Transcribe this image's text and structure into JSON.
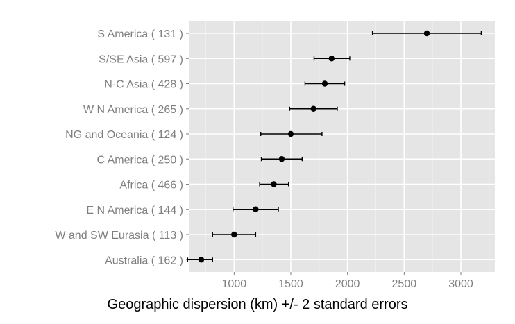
{
  "chart_data": {
    "type": "scatter",
    "title": "",
    "xlabel": "Geographic dispersion (km) +/- 2 standard errors",
    "ylabel": "",
    "xlim": [
      600,
      3300
    ],
    "x_ticks": [
      1000,
      1500,
      2000,
      2500,
      3000
    ],
    "x_tick_labels": [
      "1000",
      "1500",
      "2000",
      "2500",
      "3000"
    ],
    "grid": true,
    "legend": "none",
    "colors": {
      "panel": "#e5e5e5",
      "grid_major": "#ffffff",
      "grid_minor": "#f0f0f0",
      "point": "#000000",
      "text": "#7f7f7f",
      "title": "#000000"
    },
    "categories": [
      {
        "label": "S America  ( 131 )",
        "mean": 2700,
        "lower": 2220,
        "upper": 3180
      },
      {
        "label": "S/SE Asia  ( 597 )",
        "mean": 1860,
        "lower": 1705,
        "upper": 2020
      },
      {
        "label": "N-C Asia  ( 428 )",
        "mean": 1800,
        "lower": 1625,
        "upper": 1975
      },
      {
        "label": "W N America  ( 265 )",
        "mean": 1700,
        "lower": 1490,
        "upper": 1910
      },
      {
        "label": "NG and Oceania  ( 124 )",
        "mean": 1500,
        "lower": 1235,
        "upper": 1775
      },
      {
        "label": "C America  ( 250 )",
        "mean": 1420,
        "lower": 1240,
        "upper": 1600
      },
      {
        "label": "Africa  ( 466 )",
        "mean": 1350,
        "lower": 1225,
        "upper": 1480
      },
      {
        "label": "E N America  ( 144 )",
        "mean": 1190,
        "lower": 990,
        "upper": 1390
      },
      {
        "label": "W and SW Eurasia  ( 113 )",
        "mean": 1000,
        "lower": 810,
        "upper": 1190
      },
      {
        "label": "Australia  ( 162 )",
        "mean": 710,
        "lower": 590,
        "upper": 810
      }
    ]
  }
}
